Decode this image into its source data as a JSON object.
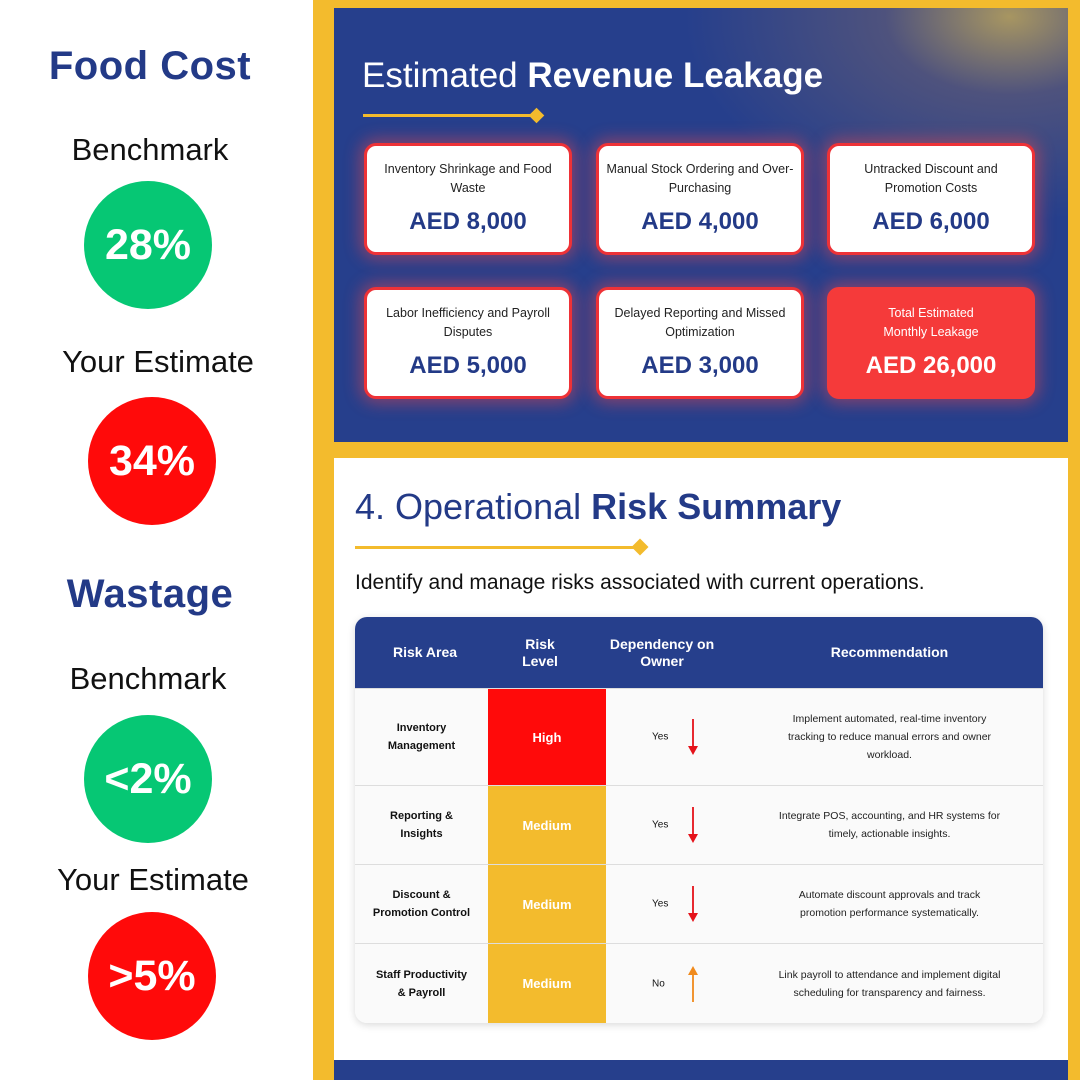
{
  "food_cost": {
    "title": "Food Cost",
    "benchmark_label": "Benchmark",
    "benchmark_value": "28%",
    "estimate_label": "Your Estimate",
    "estimate_value": "34%"
  },
  "wastage": {
    "title": "Wastage",
    "benchmark_label": "Benchmark",
    "benchmark_value": "<2%",
    "estimate_label": "Your Estimate",
    "estimate_value": ">5%"
  },
  "revenue": {
    "title_regular": "Estimated ",
    "title_bold": "Revenue Leakage",
    "cards": [
      {
        "label": "Inventory Shrinkage and Food Waste",
        "value": "AED 8,000"
      },
      {
        "label": "Manual Stock Ordering and Over-Purchasing",
        "value": "AED 4,000"
      },
      {
        "label": "Untracked Discount and Promotion Costs",
        "value": "AED 6,000"
      },
      {
        "label": "Labor Inefficiency and Payroll Disputes",
        "value": "AED 5,000"
      },
      {
        "label": "Delayed Reporting and Missed Optimization",
        "value": "AED 3,000"
      }
    ],
    "total": {
      "label_line1": "Total Estimated",
      "label_line2": "Monthly Leakage",
      "value": "AED 26,000"
    }
  },
  "risk": {
    "title_regular": "4. Operational ",
    "title_bold": "Risk Summary",
    "subtitle": "Identify and manage risks associated with current operations.",
    "headers": {
      "area": "Risk Area",
      "level_line1": "Risk",
      "level_line2": "Level",
      "dependency_line1": "Dependency on",
      "dependency_line2": "Owner",
      "recommendation": "Recommendation"
    },
    "rows": [
      {
        "area_line1": "Inventory",
        "area_line2": "Management",
        "level": "High",
        "dependency": "Yes",
        "arrow": "down",
        "rec_line1": "Implement automated, real-time inventory",
        "rec_line2": "tracking to reduce manual errors and owner",
        "rec_line3": "workload."
      },
      {
        "area_line1": "Reporting &",
        "area_line2": "Insights",
        "level": "Medium",
        "dependency": "Yes",
        "arrow": "down",
        "rec_line1": "Integrate POS, accounting, and HR systems for",
        "rec_line2": "timely, actionable insights."
      },
      {
        "area_line1": "Discount &",
        "area_line2": "Promotion Control",
        "level": "Medium",
        "dependency": "Yes",
        "arrow": "down",
        "rec_line1": "Automate discount approvals and track",
        "rec_line2": "promotion performance systematically."
      },
      {
        "area_line1": "Staff Productivity",
        "area_line2": "& Payroll",
        "level": "Medium",
        "dependency": "No",
        "arrow": "up",
        "rec_line1": "Link payroll to attendance and implement digital",
        "rec_line2": "scheduling for transparency and fairness."
      }
    ]
  },
  "colors": {
    "navy": "#263f8c",
    "gold": "#f3bb2d",
    "green": "#06c774",
    "red": "#ff0a0a",
    "arrow_down": "#e5121a",
    "arrow_up": "#f08a1c"
  }
}
